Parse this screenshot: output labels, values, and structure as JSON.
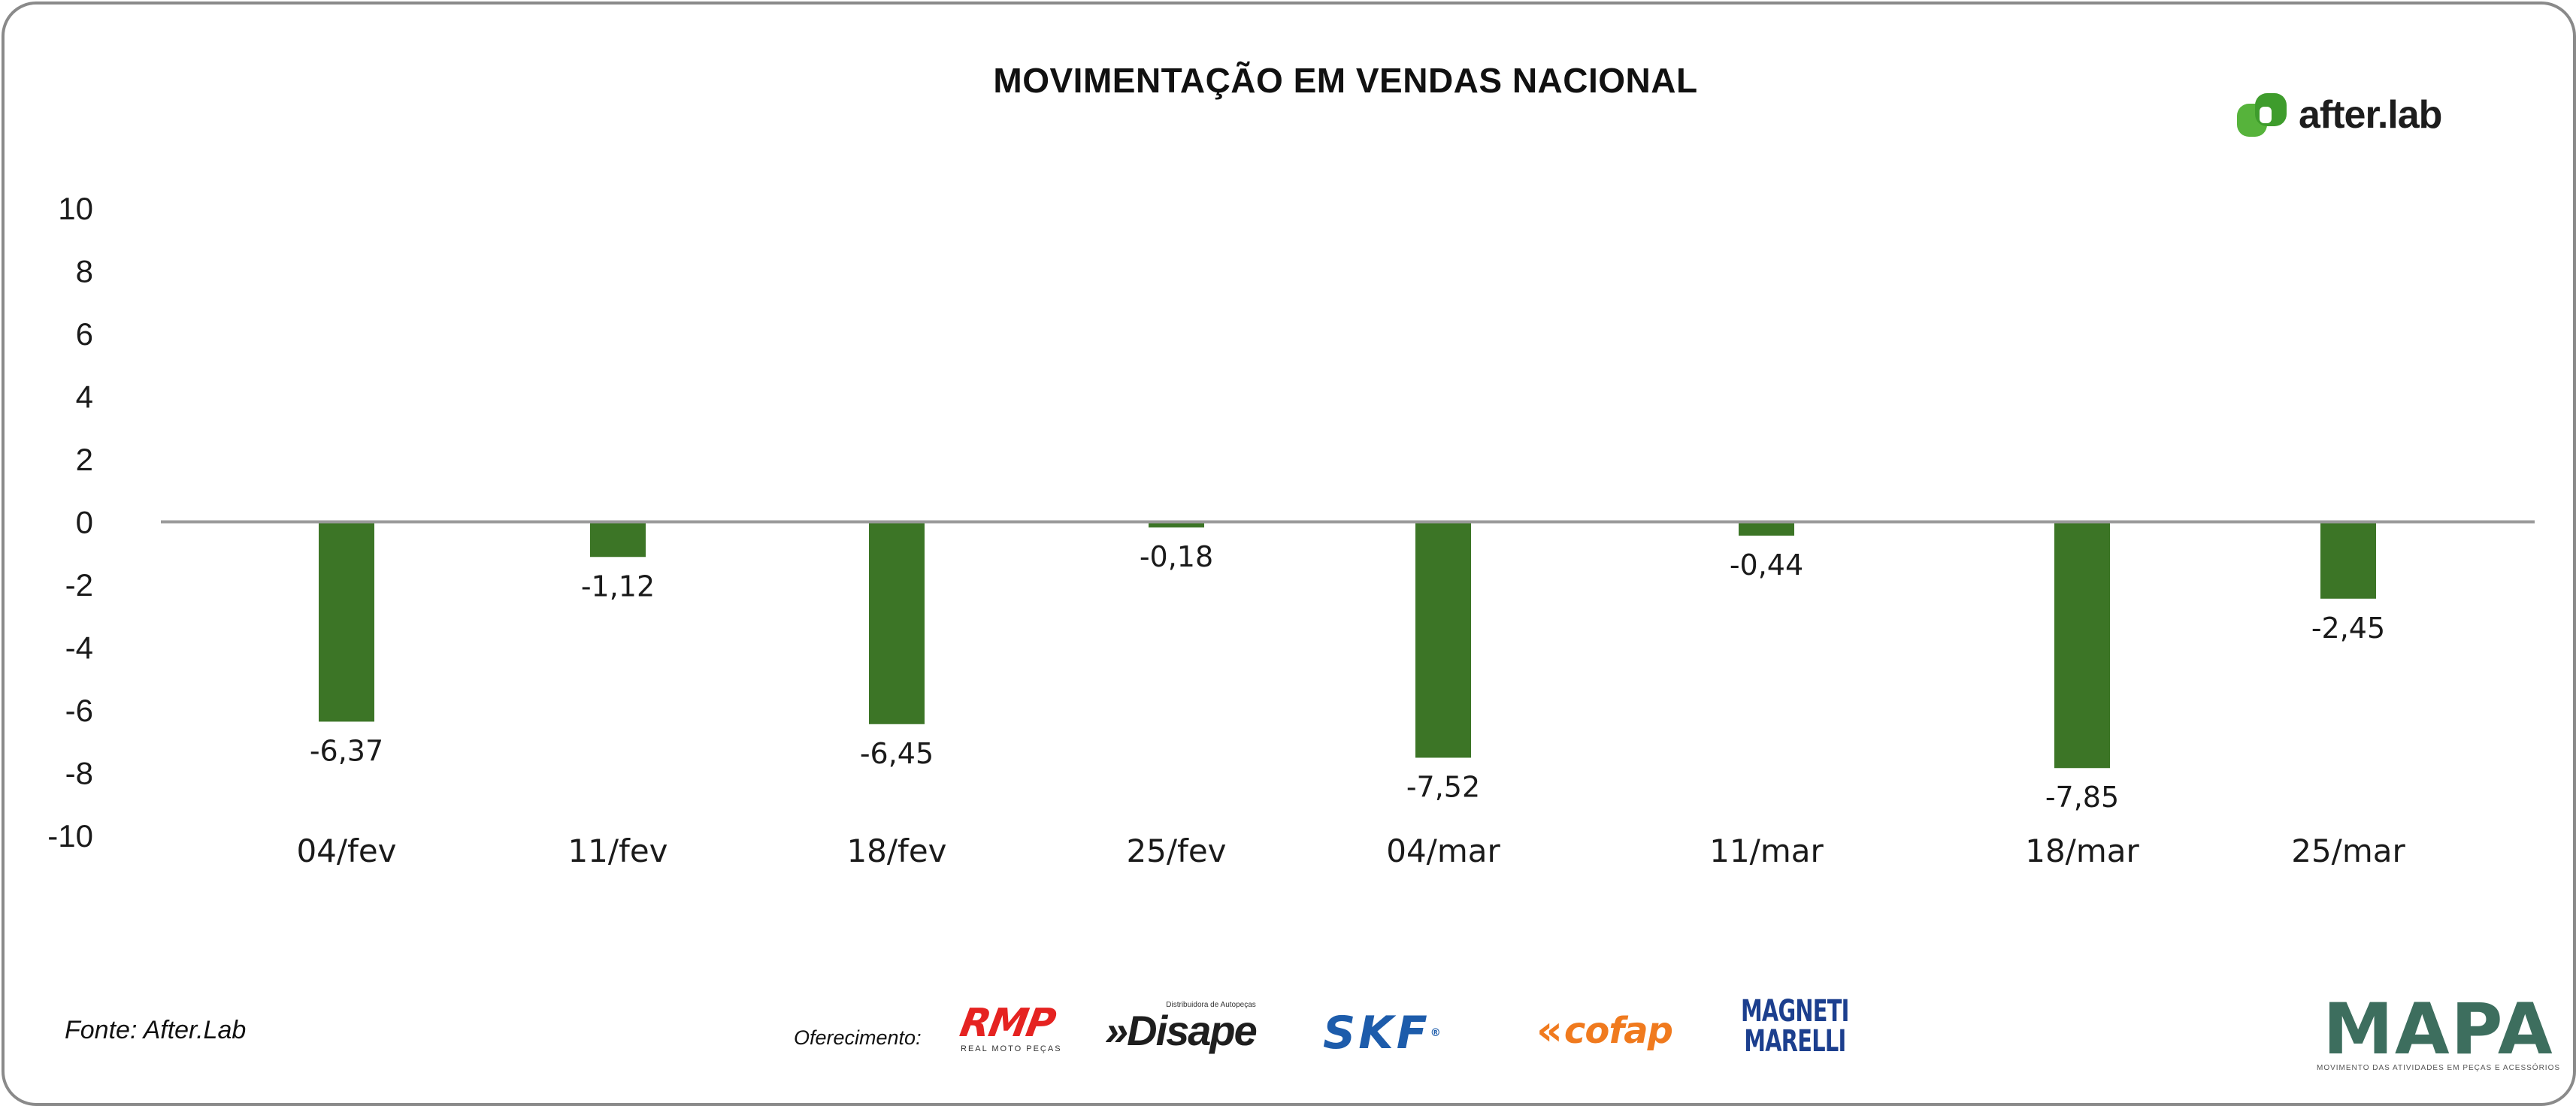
{
  "chart_data": {
    "type": "bar",
    "title": "MOVIMENTAÇÃO EM VENDAS NACIONAL",
    "categories": [
      "04/fev",
      "11/fev",
      "18/fev",
      "25/fev",
      "04/mar",
      "11/mar",
      "18/mar",
      "25/mar"
    ],
    "series": [
      {
        "values": [
          -6.37,
          -1.12,
          -6.45,
          -0.18,
          -7.52,
          -0.44,
          -7.85,
          -2.45
        ],
        "labels": [
          "-6,37",
          "-1,12",
          "-6,45",
          "-0,18",
          "-7,52",
          "-0,44",
          "-7,85",
          "-2,45"
        ]
      }
    ],
    "yticks": [
      "10",
      "8",
      "6",
      "4",
      "2",
      "0",
      "-2",
      "-4",
      "-6",
      "-8",
      "-10"
    ],
    "ylim": [
      -10,
      10
    ],
    "grid": false,
    "legend": "none",
    "colors": {
      "bar": "#3c7526",
      "zero_line": "#9a9a9a",
      "text": "#1a1a1a"
    }
  },
  "branding": {
    "afterlab": "after.lab",
    "source": "Fonte: After.Lab",
    "sponsor_label": "Oferecimento:",
    "sponsors": {
      "rmp": "RMP",
      "rmp_sub": "REAL MOTO PEÇAS",
      "disape": "»Disape",
      "disape_sub": "Distribuidora de Autopeças",
      "skf": "SKF",
      "cofap": "cofap",
      "magneti_1": "MAGNETI",
      "magneti_2": "MARELLI"
    },
    "mapa": "MAPA",
    "mapa_sub": "MOVIMENTO DAS ATIVIDADES EM PEÇAS E ACESSÓRIOS"
  }
}
